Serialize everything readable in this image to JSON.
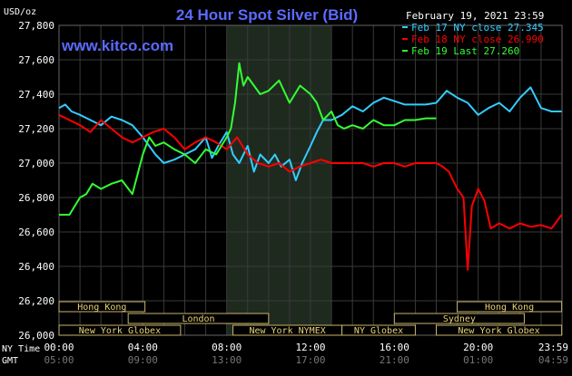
{
  "chart_data": {
    "type": "line",
    "title": "24 Hour Spot Silver (Bid)",
    "site": "www.kitco.com",
    "timestamp": "February 19, 2021 23:59",
    "ylabel": "USD/oz",
    "ylim": [
      26.0,
      27.8
    ],
    "xlim": [
      0,
      24
    ],
    "grid": true,
    "legend_position": "top-right",
    "y_ticks": [
      {
        "v": 26.0,
        "label": "26,000"
      },
      {
        "v": 26.2,
        "label": "26,200"
      },
      {
        "v": 26.4,
        "label": "26,400"
      },
      {
        "v": 26.6,
        "label": "26,600"
      },
      {
        "v": 26.8,
        "label": "26,800"
      },
      {
        "v": 27.0,
        "label": "27,000"
      },
      {
        "v": 27.2,
        "label": "27,200"
      },
      {
        "v": 27.4,
        "label": "27,400"
      },
      {
        "v": 27.6,
        "label": "27,600"
      },
      {
        "v": 27.8,
        "label": "27,800"
      }
    ],
    "ny_time_label": "NY Time",
    "gmt_label": "GMT",
    "x_ticks": [
      {
        "h": 0,
        "ny": "00:00",
        "gmt": "05:00"
      },
      {
        "h": 4,
        "ny": "04:00",
        "gmt": "09:00"
      },
      {
        "h": 8,
        "ny": "08:00",
        "gmt": "13:00"
      },
      {
        "h": 12,
        "ny": "12:00",
        "gmt": "17:00"
      },
      {
        "h": 16,
        "ny": "16:00",
        "gmt": "21:00"
      },
      {
        "h": 20,
        "ny": "20:00",
        "gmt": "01:00"
      },
      {
        "h": 23.983,
        "ny": "23:59",
        "gmt": "04:59"
      }
    ],
    "shaded_range": [
      8.0,
      13.0
    ],
    "sessions": [
      {
        "label": "Hong Kong",
        "start": 0,
        "end": 4.1,
        "row": 0
      },
      {
        "label": "London",
        "start": 3.3,
        "end": 10.0,
        "row": 1
      },
      {
        "label": "New York Globex",
        "start": 0,
        "end": 5.8,
        "row": 2
      },
      {
        "label": "New York NYMEX",
        "start": 8.3,
        "end": 13.5,
        "row": 2
      },
      {
        "label": "NY Globex",
        "start": 13.5,
        "end": 17.0,
        "row": 2
      },
      {
        "label": "Hong Kong",
        "start": 19.0,
        "end": 23.983,
        "row": 0
      },
      {
        "label": "Sydney",
        "start": 16.0,
        "end": 22.2,
        "row": 1
      },
      {
        "label": "New York Globex",
        "start": 18.0,
        "end": 23.983,
        "row": 2
      }
    ],
    "series": [
      {
        "name": "Feb 17 NY close 27.345",
        "color": "#33ccff",
        "x": [
          0,
          0.3,
          0.6,
          1.0,
          1.5,
          2.0,
          2.5,
          3.0,
          3.5,
          4.0,
          4.3,
          4.6,
          5.0,
          5.5,
          6.0,
          6.5,
          7.0,
          7.3,
          7.6,
          8.0,
          8.3,
          8.6,
          9.0,
          9.3,
          9.6,
          10.0,
          10.3,
          10.6,
          11.0,
          11.3,
          11.6,
          12.0,
          12.3,
          12.6,
          13.0,
          13.5,
          14.0,
          14.5,
          15.0,
          15.5,
          16.0,
          16.5,
          17.0,
          17.5,
          18.0,
          18.5,
          19.0,
          19.5,
          20.0,
          20.5,
          21.0,
          21.5,
          22.0,
          22.5,
          23.0,
          23.5,
          23.983
        ],
        "y": [
          27.32,
          27.34,
          27.3,
          27.28,
          27.25,
          27.22,
          27.27,
          27.25,
          27.22,
          27.15,
          27.1,
          27.05,
          27.0,
          27.02,
          27.05,
          27.08,
          27.15,
          27.03,
          27.1,
          27.18,
          27.05,
          27.0,
          27.1,
          26.95,
          27.05,
          27.0,
          27.05,
          26.98,
          27.02,
          26.9,
          27.0,
          27.1,
          27.18,
          27.25,
          27.25,
          27.28,
          27.33,
          27.3,
          27.35,
          27.38,
          27.36,
          27.34,
          27.34,
          27.34,
          27.35,
          27.42,
          27.38,
          27.35,
          27.28,
          27.32,
          27.35,
          27.3,
          27.38,
          27.44,
          27.32,
          27.3,
          27.3
        ]
      },
      {
        "name": "Feb 18 NY close 26.990",
        "color": "#ff0000",
        "x": [
          0,
          0.5,
          1.0,
          1.5,
          2.0,
          2.5,
          3.0,
          3.5,
          4.0,
          4.5,
          5.0,
          5.5,
          6.0,
          6.5,
          7.0,
          7.5,
          8.0,
          8.5,
          9.0,
          9.5,
          10.0,
          10.5,
          11.0,
          11.5,
          12.0,
          12.5,
          13.0,
          13.5,
          14.0,
          14.5,
          15.0,
          15.5,
          16.0,
          16.5,
          17.0,
          17.5,
          18.0,
          18.3,
          18.6,
          19.0,
          19.3,
          19.5,
          19.7,
          20.0,
          20.3,
          20.6,
          21.0,
          21.5,
          22.0,
          22.5,
          23.0,
          23.5,
          23.983
        ],
        "y": [
          27.28,
          27.25,
          27.22,
          27.18,
          27.25,
          27.2,
          27.15,
          27.12,
          27.15,
          27.18,
          27.2,
          27.15,
          27.08,
          27.12,
          27.15,
          27.12,
          27.08,
          27.15,
          27.05,
          27.0,
          26.98,
          27.0,
          26.95,
          26.98,
          27.0,
          27.02,
          27.0,
          27.0,
          27.0,
          27.0,
          26.98,
          27.0,
          27.0,
          26.98,
          27.0,
          27.0,
          27.0,
          26.98,
          26.95,
          26.85,
          26.8,
          26.38,
          26.75,
          26.85,
          26.78,
          26.62,
          26.65,
          26.62,
          26.65,
          26.63,
          26.64,
          26.62,
          26.7
        ]
      },
      {
        "name": "Feb 19 Last 27.260",
        "color": "#33ff33",
        "x": [
          0,
          0.5,
          1.0,
          1.3,
          1.6,
          2.0,
          2.5,
          3.0,
          3.5,
          4.0,
          4.3,
          4.6,
          5.0,
          5.5,
          6.0,
          6.5,
          7.0,
          7.5,
          8.0,
          8.2,
          8.4,
          8.6,
          8.8,
          9.0,
          9.3,
          9.6,
          10.0,
          10.5,
          11.0,
          11.5,
          12.0,
          12.3,
          12.6,
          13.0,
          13.3,
          13.6,
          14.0,
          14.5,
          15.0,
          15.5,
          16.0,
          16.5,
          17.0,
          17.5,
          18.0
        ],
        "y": [
          26.7,
          26.7,
          26.8,
          26.82,
          26.88,
          26.85,
          26.88,
          26.9,
          26.82,
          27.05,
          27.15,
          27.1,
          27.12,
          27.08,
          27.05,
          27.0,
          27.08,
          27.05,
          27.15,
          27.2,
          27.35,
          27.58,
          27.45,
          27.5,
          27.45,
          27.4,
          27.42,
          27.48,
          27.35,
          27.45,
          27.4,
          27.35,
          27.25,
          27.3,
          27.22,
          27.2,
          27.22,
          27.2,
          27.25,
          27.22,
          27.22,
          27.25,
          27.25,
          27.26,
          27.26
        ]
      }
    ]
  }
}
